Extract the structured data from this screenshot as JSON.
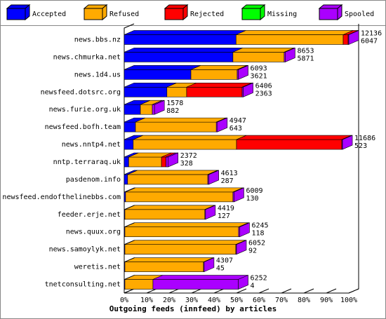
{
  "chart_data": {
    "type": "bar",
    "orientation": "horizontal",
    "stacked": true,
    "x_label": "Outgoing feeds (innfeed) by articles",
    "categories": [
      "news.bbs.nz",
      "news.chmurka.net",
      "news.1d4.us",
      "newsfeed.dotsrc.org",
      "news.furie.org.uk",
      "newsfeed.bofh.team",
      "news.nntp4.net",
      "nntp.terraraq.uk",
      "pasdenom.info",
      "newsfeed.endofthelinebbs.com",
      "feeder.erje.net",
      "news.quux.org",
      "news.samoylyk.net",
      "weretis.net",
      "tnetconsulting.net"
    ],
    "series": [
      {
        "name": "Accepted",
        "color": "#0000ff",
        "values": [
          49.8,
          48.4,
          29.7,
          19,
          7.2,
          5,
          4,
          2,
          1.5,
          0.6,
          0.3,
          0.3,
          0.3,
          0.3,
          0.3
        ]
      },
      {
        "name": "Refused",
        "color": "#ffaa00",
        "values": [
          47.7,
          22.8,
          20.6,
          8.8,
          5.3,
          36,
          46,
          14.6,
          35.7,
          47.8,
          35.6,
          50.6,
          49.4,
          35,
          12.5
        ]
      },
      {
        "name": "Rejected",
        "color": "#ff0000",
        "values": [
          2.2,
          0,
          0,
          24.7,
          0,
          0,
          46.9,
          2,
          0,
          0,
          0,
          0,
          0,
          0,
          0
        ]
      },
      {
        "name": "Missing",
        "color": "#00ff00",
        "values": [
          0,
          0,
          0,
          0,
          0,
          0,
          0,
          0,
          0,
          0,
          0,
          0,
          0,
          0,
          0
        ]
      },
      {
        "name": "Spooled",
        "color": "#aa00ff",
        "values": [
          0.3,
          0.5,
          0.5,
          0.5,
          1,
          0.5,
          0.3,
          1,
          0.5,
          0.5,
          0.3,
          0.5,
          0.3,
          0.3,
          38
        ]
      }
    ],
    "offered": [
      12136,
      8653,
      6093,
      6406,
      1578,
      4947,
      11686,
      2372,
      4613,
      6009,
      4419,
      6245,
      6052,
      4307,
      6252
    ],
    "second_count": [
      6047,
      5871,
      3621,
      2363,
      882,
      643,
      523,
      328,
      287,
      130,
      127,
      118,
      92,
      45,
      4
    ],
    "xlim": [
      0,
      100
    ],
    "xticks": [
      {
        "value": 0,
        "label": "0%"
      },
      {
        "value": 10,
        "label": "10%"
      },
      {
        "value": 20,
        "label": "20%"
      },
      {
        "value": 30,
        "label": "30%"
      },
      {
        "value": 40,
        "label": "40%"
      },
      {
        "value": 50,
        "label": "50%"
      },
      {
        "value": 60,
        "label": "60%"
      },
      {
        "value": 70,
        "label": "70%"
      },
      {
        "value": 80,
        "label": "80%"
      },
      {
        "value": 90,
        "label": "90%"
      },
      {
        "value": 100,
        "label": "100%"
      }
    ]
  }
}
